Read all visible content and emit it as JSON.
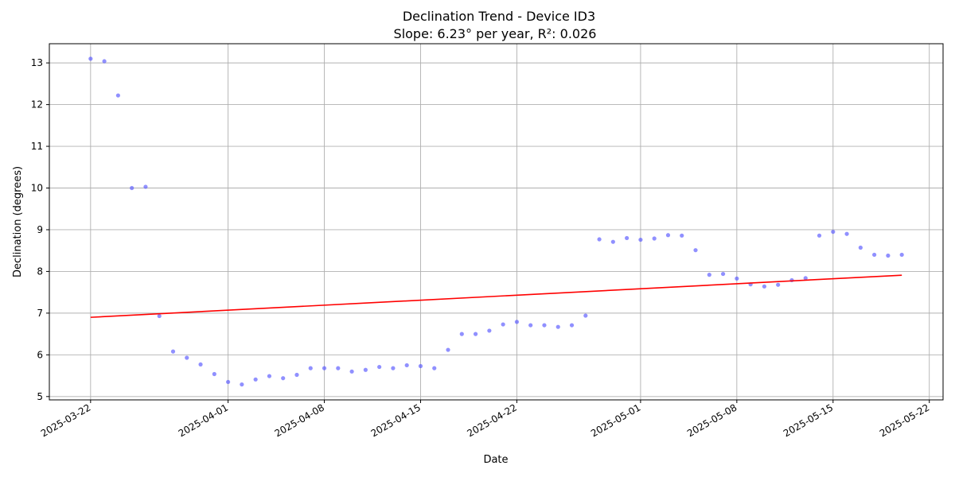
{
  "chart_data": {
    "type": "scatter",
    "title": "Declination Trend - Device ID3",
    "subtitle": "Slope: 6.23° per year, R²: 0.026",
    "xlabel": "Date",
    "ylabel": "Declination (degrees)",
    "x_type": "date",
    "xlim": [
      "2025-03-19",
      "2025-05-23"
    ],
    "ylim": [
      4.92,
      13.46
    ],
    "x_ticks": [
      "2025-03-22",
      "2025-04-01",
      "2025-04-08",
      "2025-04-15",
      "2025-04-22",
      "2025-05-01",
      "2025-05-08",
      "2025-05-15",
      "2025-05-22"
    ],
    "y_ticks": [
      5,
      6,
      7,
      8,
      9,
      10,
      11,
      12,
      13
    ],
    "grid": true,
    "series": [
      {
        "color": "#5555ff",
        "x": [
          "2025-03-22",
          "2025-03-23",
          "2025-03-24",
          "2025-03-25",
          "2025-03-26",
          "2025-03-27",
          "2025-03-28",
          "2025-03-29",
          "2025-03-30",
          "2025-03-31",
          "2025-04-01",
          "2025-04-02",
          "2025-04-03",
          "2025-04-04",
          "2025-04-05",
          "2025-04-06",
          "2025-04-07",
          "2025-04-08",
          "2025-04-09",
          "2025-04-10",
          "2025-04-11",
          "2025-04-12",
          "2025-04-13",
          "2025-04-14",
          "2025-04-15",
          "2025-04-16",
          "2025-04-17",
          "2025-04-18",
          "2025-04-19",
          "2025-04-20",
          "2025-04-21",
          "2025-04-22",
          "2025-04-23",
          "2025-04-24",
          "2025-04-25",
          "2025-04-26",
          "2025-04-27",
          "2025-04-28",
          "2025-04-29",
          "2025-04-30",
          "2025-05-01",
          "2025-05-02",
          "2025-05-03",
          "2025-05-04",
          "2025-05-05",
          "2025-05-06",
          "2025-05-07",
          "2025-05-08",
          "2025-05-09",
          "2025-05-10",
          "2025-05-11",
          "2025-05-12",
          "2025-05-13",
          "2025-05-14",
          "2025-05-15",
          "2025-05-16",
          "2025-05-17",
          "2025-05-18",
          "2025-05-19",
          "2025-05-20"
        ],
        "y": [
          13.1,
          13.04,
          12.22,
          10.0,
          10.03,
          6.93,
          6.08,
          5.93,
          5.77,
          5.54,
          5.35,
          5.29,
          5.41,
          5.49,
          5.44,
          5.52,
          5.68,
          5.68,
          5.68,
          5.6,
          5.64,
          5.71,
          5.68,
          5.75,
          5.73,
          5.68,
          6.12,
          6.5,
          6.5,
          6.58,
          6.73,
          6.79,
          6.71,
          6.71,
          6.67,
          6.71,
          6.94,
          8.77,
          8.71,
          8.8,
          8.76,
          8.79,
          8.87,
          8.86,
          8.51,
          7.92,
          7.94,
          7.83,
          7.69,
          7.64,
          7.68,
          7.79,
          7.84,
          8.86,
          8.95,
          8.9,
          8.57,
          8.4,
          8.38,
          8.4
        ]
      },
      {
        "color": "#ff0000",
        "x": [
          "2025-03-22",
          "2025-05-20"
        ],
        "y": [
          6.9,
          7.91
        ]
      }
    ]
  }
}
